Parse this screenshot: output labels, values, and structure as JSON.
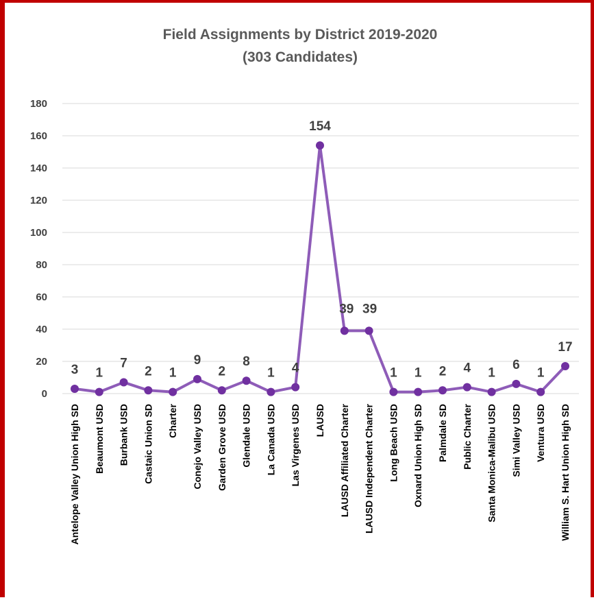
{
  "colors": {
    "border": "#c00000",
    "series": "#8e5cb8",
    "marker": "#7030a0",
    "grid": "#d9d9d9"
  },
  "chart_data": {
    "type": "line",
    "title": "Field Assignments by District 2019-2020",
    "subtitle": "(303 Candidates)",
    "xlabel": "",
    "ylabel": "",
    "ylim": [
      0,
      180
    ],
    "yticks": [
      0,
      20,
      40,
      60,
      80,
      100,
      120,
      140,
      160,
      180
    ],
    "grid": true,
    "legend": "none",
    "categories": [
      "Antelope Valley Union High SD",
      "Beaumont USD",
      "Burbank USD",
      "Castaic Union SD",
      "Charter",
      "Conejo Valley USD",
      "Garden Grove USD",
      "Glendale USD",
      "La Canada USD",
      "Las Virgenes USD",
      "LAUSD",
      "LAUSD Affiliated Charter",
      "LAUSD Independent Charter",
      "Long Beach USD",
      "Oxnard Union High SD",
      "Palmdale SD",
      "Public Charter",
      "Santa Monica-Malibu USD",
      "Simi Valley USD",
      "Ventura USD",
      "William S. Hart Union High SD"
    ],
    "values": [
      3,
      1,
      7,
      2,
      1,
      9,
      2,
      8,
      1,
      4,
      154,
      39,
      39,
      1,
      1,
      2,
      4,
      1,
      6,
      1,
      17
    ],
    "data_labels": [
      "3",
      "1",
      "7",
      "2",
      "1",
      "9",
      "2",
      "8",
      "1",
      "4",
      "154",
      "39",
      "39",
      "1",
      "1",
      "2",
      "4",
      "1",
      "6",
      "1",
      "17"
    ]
  }
}
